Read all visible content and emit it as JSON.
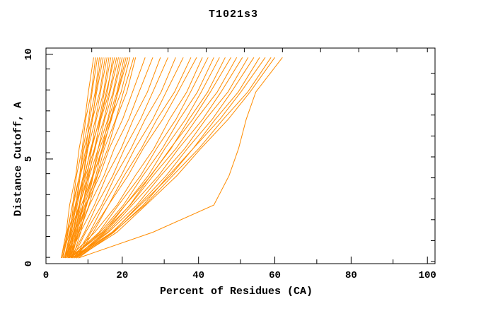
{
  "chart_data": {
    "type": "line",
    "title": "T1021s3",
    "xlabel": "Percent of Residues (CA)",
    "ylabel": "Distance Cutoff, A",
    "xlim": [
      0,
      102
    ],
    "ylim": [
      0,
      10.3
    ],
    "xticks": [
      0,
      20,
      40,
      60,
      80,
      100
    ],
    "yticks": [
      0,
      5,
      10
    ],
    "x_minor_ticks": [
      11,
      31,
      51,
      71,
      91
    ],
    "x_top_ticks": [
      12,
      22,
      32,
      42,
      52,
      62,
      72,
      82,
      92,
      100
    ],
    "y_minor_ticks": [
      0.3,
      1.3,
      2.3,
      3.3,
      4.3,
      5.3,
      6.3,
      7.3,
      8.3,
      9.3
    ],
    "y_right_ticks": [
      0.1,
      1.1,
      2.1,
      3.1,
      4.1,
      5.1,
      6.1,
      7.1,
      8.1,
      9.1
    ],
    "grid": false,
    "legend": false,
    "background": "#ffffff",
    "frame_color": "#000000",
    "line_color": "#ff8c00",
    "y_levels": [
      0.27,
      1.5,
      2.8,
      4.2,
      5.5,
      6.9,
      8.2,
      9.85
    ],
    "curves": [
      [
        4.0,
        5.3,
        6.2,
        7.8,
        8.7,
        10.2,
        11.1,
        12.5
      ],
      [
        4.5,
        5.5,
        7.0,
        8.0,
        9.5,
        10.4,
        11.9,
        13.0
      ],
      [
        5.0,
        6.3,
        7.2,
        8.8,
        9.7,
        11.2,
        12.1,
        13.5
      ],
      [
        5.5,
        6.5,
        8.0,
        9.0,
        10.5,
        11.4,
        12.9,
        14.0
      ],
      [
        6.0,
        7.3,
        8.2,
        9.8,
        10.7,
        12.2,
        13.1,
        14.5
      ],
      [
        4.0,
        5.7,
        6.9,
        8.8,
        10.0,
        12.0,
        13.3,
        15.0
      ],
      [
        4.5,
        5.8,
        7.7,
        9.0,
        10.9,
        12.2,
        14.1,
        15.5
      ],
      [
        5.0,
        6.7,
        7.9,
        9.8,
        11.0,
        13.0,
        14.3,
        16.0
      ],
      [
        5.5,
        6.9,
        8.7,
        10.0,
        11.9,
        13.2,
        15.1,
        16.5
      ],
      [
        6.0,
        7.7,
        8.9,
        10.8,
        12.0,
        14.0,
        15.3,
        17.0
      ],
      [
        6.5,
        7.9,
        9.7,
        11.0,
        12.9,
        14.2,
        16.1,
        17.5
      ],
      [
        4.2,
        6.2,
        7.8,
        10.2,
        11.7,
        14.2,
        15.8,
        18.0
      ],
      [
        4.8,
        6.4,
        8.7,
        10.4,
        12.7,
        14.4,
        16.6,
        18.5
      ],
      [
        5.2,
        7.2,
        8.8,
        11.2,
        12.8,
        15.2,
        16.8,
        19.0
      ],
      [
        5.8,
        7.4,
        9.7,
        11.4,
        13.7,
        15.4,
        17.6,
        19.5
      ],
      [
        6.2,
        8.2,
        9.8,
        12.2,
        13.7,
        16.2,
        17.8,
        20.0
      ],
      [
        6.8,
        8.4,
        10.7,
        12.4,
        14.7,
        16.4,
        18.6,
        20.5
      ],
      [
        7.0,
        9.1,
        10.6,
        13.1,
        14.7,
        17.2,
        18.8,
        21.0
      ],
      [
        5.0,
        7.4,
        9.3,
        12.2,
        14.1,
        16.9,
        18.9,
        21.5
      ],
      [
        5.5,
        7.5,
        10.2,
        12.3,
        15.0,
        17.0,
        19.7,
        22.0
      ],
      [
        6.0,
        8.5,
        10.4,
        13.4,
        15.3,
        18.3,
        20.3,
        23.0
      ],
      [
        6.5,
        8.6,
        11.3,
        13.5,
        16.2,
        18.4,
        21.2,
        23.5
      ],
      [
        5.0,
        8.0,
        10.5,
        14.1,
        16.6,
        20.1,
        22.7,
        26.0
      ],
      [
        5.5,
        8.7,
        11.4,
        15.2,
        17.9,
        21.7,
        24.4,
        28.0
      ],
      [
        6.0,
        9.0,
        12.7,
        15.9,
        19.7,
        22.9,
        26.6,
        30.0
      ],
      [
        6.5,
        10.1,
        13.3,
        17.5,
        20.6,
        24.8,
        28.0,
        32.0
      ],
      [
        7.0,
        10.4,
        14.6,
        18.2,
        22.3,
        26.0,
        30.2,
        34.0
      ],
      [
        7.5,
        11.5,
        15.1,
        19.7,
        23.3,
        28.0,
        31.5,
        36.0
      ],
      [
        8.0,
        11.8,
        16.4,
        20.5,
        25.0,
        29.1,
        33.7,
        38.0
      ],
      [
        8.0,
        12.4,
        16.4,
        21.5,
        25.5,
        30.6,
        34.6,
        39.5
      ],
      [
        6.0,
        12.8,
        18.6,
        23.4,
        28.3,
        32.4,
        36.9,
        41.0
      ],
      [
        6.5,
        13.9,
        19.0,
        24.8,
        29.0,
        34.1,
        37.9,
        42.5
      ],
      [
        7.0,
        14.2,
        20.3,
        25.4,
        30.5,
        35.0,
        39.7,
        44.0
      ],
      [
        7.5,
        15.3,
        20.8,
        26.8,
        31.2,
        36.6,
        40.7,
        45.5
      ],
      [
        8.0,
        15.6,
        22.0,
        27.4,
        32.8,
        37.5,
        42.4,
        47.0
      ],
      [
        6.0,
        14.7,
        20.8,
        27.5,
        32.6,
        38.5,
        43.1,
        48.5
      ],
      [
        6.5,
        15.0,
        22.1,
        28.1,
        34.1,
        39.4,
        44.9,
        50.0
      ],
      [
        7.0,
        16.1,
        22.6,
        29.5,
        34.8,
        41.1,
        45.9,
        51.5
      ],
      [
        7.5,
        16.4,
        23.8,
        30.1,
        36.4,
        41.9,
        47.7,
        53.0
      ],
      [
        8.0,
        17.5,
        24.3,
        31.5,
        37.1,
        43.6,
        48.6,
        54.5
      ],
      [
        8.5,
        17.8,
        25.5,
        32.1,
        38.6,
        44.4,
        50.4,
        56.0
      ],
      [
        7.0,
        17.3,
        24.7,
        32.6,
        38.6,
        45.6,
        51.1,
        57.5
      ],
      [
        7.5,
        17.6,
        25.9,
        33.2,
        40.1,
        46.5,
        52.9,
        59.0
      ],
      [
        8.0,
        18.6,
        26.2,
        34.3,
        40.6,
        47.8,
        53.5,
        60.0
      ],
      [
        8.5,
        28.0,
        44.0,
        48.0,
        50.5,
        52.5,
        55.0,
        62.0
      ]
    ]
  }
}
